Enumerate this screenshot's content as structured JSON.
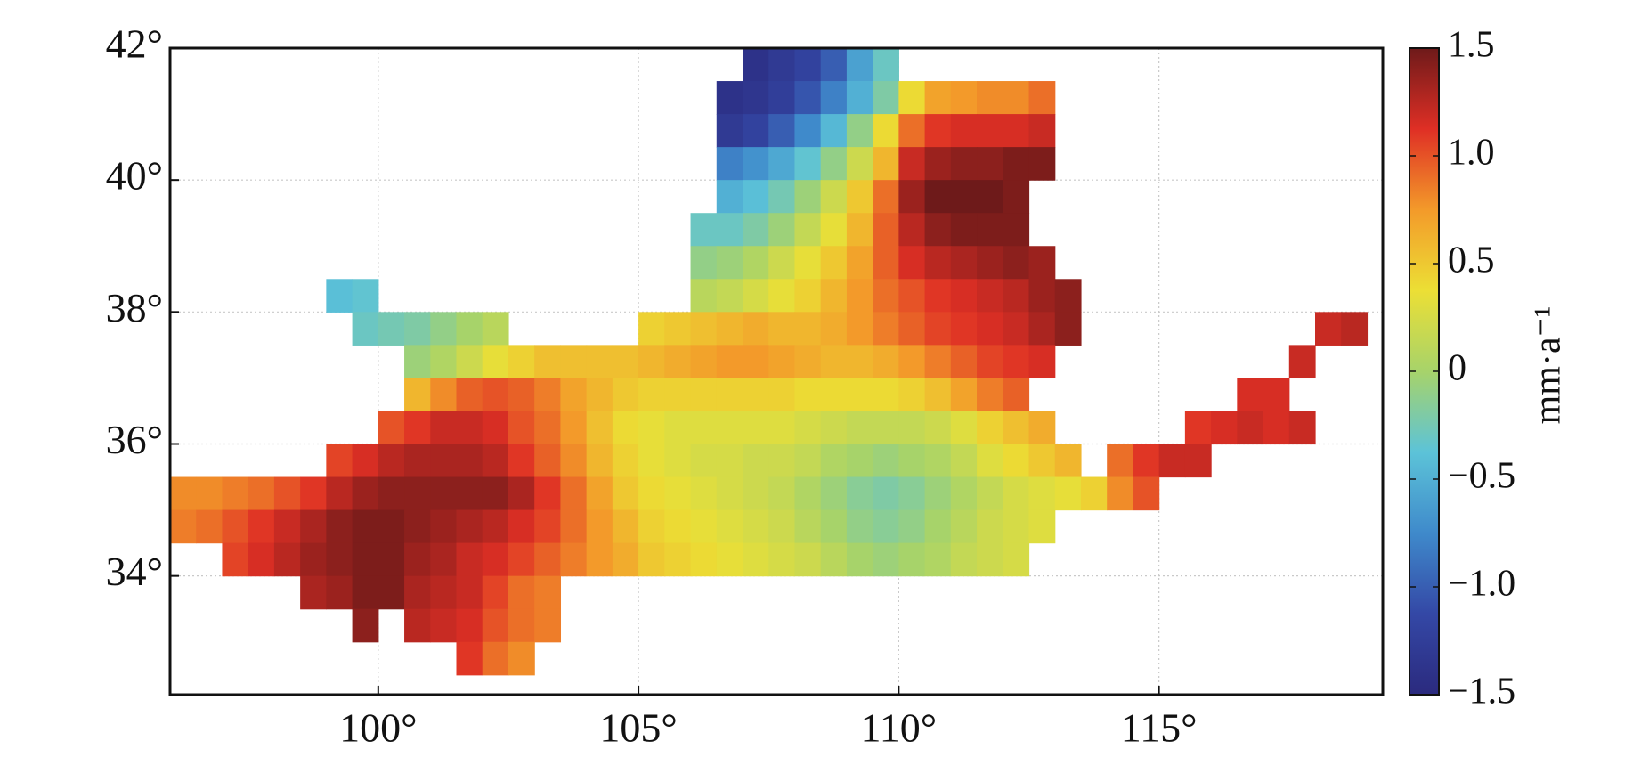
{
  "chart_data": {
    "type": "heatmap",
    "x": [
      96.25,
      96.75,
      97.25,
      97.75,
      98.25,
      98.75,
      99.25,
      99.75,
      100.25,
      100.75,
      101.25,
      101.75,
      102.25,
      102.75,
      103.25,
      103.75,
      104.25,
      104.75,
      105.25,
      105.75,
      106.25,
      106.75,
      107.25,
      107.75,
      108.25,
      108.75,
      109.25,
      109.75,
      110.25,
      110.75,
      111.25,
      111.75,
      112.25,
      112.75,
      113.25,
      113.75,
      114.25,
      114.75,
      115.25,
      115.75,
      116.25,
      116.75,
      117.25,
      117.75,
      118.25,
      118.75
    ],
    "y": [
      41.75,
      41.25,
      40.75,
      40.25,
      39.75,
      39.25,
      38.75,
      38.25,
      37.75,
      37.25,
      36.75,
      36.25,
      35.75,
      35.25,
      34.75,
      34.25,
      33.75,
      33.25,
      32.75
    ],
    "values": [
      [
        null,
        null,
        null,
        null,
        null,
        null,
        null,
        null,
        null,
        null,
        null,
        null,
        null,
        null,
        null,
        null,
        null,
        null,
        null,
        null,
        null,
        null,
        -1.4,
        -1.3,
        -1.2,
        -1.0,
        -0.6,
        -0.3,
        null,
        null,
        null,
        null,
        null,
        null,
        null,
        null,
        null,
        null,
        null,
        null,
        null,
        null,
        null,
        null,
        null,
        null
      ],
      [
        null,
        null,
        null,
        null,
        null,
        null,
        null,
        null,
        null,
        null,
        null,
        null,
        null,
        null,
        null,
        null,
        null,
        null,
        null,
        null,
        null,
        -1.4,
        -1.35,
        -1.25,
        -1.05,
        -0.8,
        -0.5,
        -0.2,
        0.4,
        0.7,
        0.75,
        0.8,
        0.8,
        0.9,
        null,
        null,
        null,
        null,
        null,
        null,
        null,
        null,
        null,
        null,
        null,
        null
      ],
      [
        null,
        null,
        null,
        null,
        null,
        null,
        null,
        null,
        null,
        null,
        null,
        null,
        null,
        null,
        null,
        null,
        null,
        null,
        null,
        null,
        null,
        -1.3,
        -1.2,
        -1.0,
        -0.75,
        -0.45,
        -0.1,
        0.4,
        0.9,
        1.1,
        1.15,
        1.15,
        1.15,
        1.2,
        null,
        null,
        null,
        null,
        null,
        null,
        null,
        null,
        null,
        null,
        null,
        null
      ],
      [
        null,
        null,
        null,
        null,
        null,
        null,
        null,
        null,
        null,
        null,
        null,
        null,
        null,
        null,
        null,
        null,
        null,
        null,
        null,
        null,
        null,
        -0.8,
        -0.7,
        -0.55,
        -0.35,
        -0.1,
        0.2,
        0.6,
        1.2,
        1.35,
        1.4,
        1.4,
        1.45,
        1.45,
        null,
        null,
        null,
        null,
        null,
        null,
        null,
        null,
        null,
        null,
        null,
        null
      ],
      [
        null,
        null,
        null,
        null,
        null,
        null,
        null,
        null,
        null,
        null,
        null,
        null,
        null,
        null,
        null,
        null,
        null,
        null,
        null,
        null,
        null,
        -0.5,
        -0.4,
        -0.25,
        -0.05,
        0.2,
        0.5,
        0.9,
        1.35,
        1.5,
        1.5,
        1.5,
        1.45,
        null,
        null,
        null,
        null,
        null,
        null,
        null,
        null,
        null,
        null,
        null,
        null,
        null
      ],
      [
        null,
        null,
        null,
        null,
        null,
        null,
        null,
        null,
        null,
        null,
        null,
        null,
        null,
        null,
        null,
        null,
        null,
        null,
        null,
        null,
        -0.3,
        -0.3,
        -0.2,
        -0.05,
        0.15,
        0.35,
        0.6,
        0.95,
        1.25,
        1.4,
        1.45,
        1.45,
        1.45,
        null,
        null,
        null,
        null,
        null,
        null,
        null,
        null,
        null,
        null,
        null,
        null,
        null
      ],
      [
        null,
        null,
        null,
        null,
        null,
        null,
        null,
        null,
        null,
        null,
        null,
        null,
        null,
        null,
        null,
        null,
        null,
        null,
        null,
        null,
        -0.1,
        -0.05,
        0.05,
        0.2,
        0.35,
        0.5,
        0.7,
        0.95,
        1.15,
        1.25,
        1.3,
        1.35,
        1.4,
        1.35,
        null,
        null,
        null,
        null,
        null,
        null,
        null,
        null,
        null,
        null,
        null,
        null
      ],
      [
        null,
        null,
        null,
        null,
        null,
        null,
        -0.4,
        -0.35,
        null,
        null,
        null,
        null,
        null,
        null,
        null,
        null,
        null,
        null,
        null,
        null,
        0.1,
        0.15,
        0.25,
        0.35,
        0.45,
        0.6,
        0.75,
        0.9,
        1.0,
        1.1,
        1.15,
        1.2,
        1.25,
        1.35,
        1.4,
        null,
        null,
        null,
        null,
        null,
        null,
        null,
        null,
        null,
        null,
        null
      ],
      [
        null,
        null,
        null,
        null,
        null,
        null,
        null,
        -0.3,
        -0.25,
        -0.2,
        -0.1,
        0.0,
        0.1,
        null,
        null,
        null,
        null,
        null,
        0.45,
        0.5,
        0.55,
        0.6,
        0.65,
        0.6,
        0.6,
        0.65,
        0.75,
        0.85,
        0.95,
        1.05,
        1.1,
        1.15,
        1.2,
        1.3,
        1.4,
        null,
        null,
        null,
        null,
        null,
        null,
        null,
        null,
        null,
        1.2,
        1.25
      ],
      [
        null,
        null,
        null,
        null,
        null,
        null,
        null,
        null,
        null,
        -0.05,
        0.05,
        0.2,
        0.35,
        0.45,
        0.55,
        0.55,
        0.55,
        0.55,
        0.6,
        0.65,
        0.7,
        0.75,
        0.75,
        0.7,
        0.65,
        0.6,
        0.6,
        0.65,
        0.75,
        0.85,
        0.95,
        1.05,
        1.1,
        1.15,
        null,
        null,
        null,
        null,
        null,
        null,
        null,
        null,
        null,
        1.2,
        null,
        null
      ],
      [
        null,
        null,
        null,
        null,
        null,
        null,
        null,
        null,
        null,
        0.6,
        0.8,
        0.95,
        1.0,
        0.95,
        0.85,
        0.7,
        0.6,
        0.5,
        0.45,
        0.45,
        0.45,
        0.45,
        0.45,
        0.45,
        0.4,
        0.4,
        0.4,
        0.4,
        0.45,
        0.55,
        0.7,
        0.85,
        0.95,
        null,
        null,
        null,
        null,
        null,
        null,
        null,
        null,
        1.15,
        1.15,
        null,
        null,
        null
      ],
      [
        null,
        null,
        null,
        null,
        null,
        null,
        null,
        null,
        1.0,
        1.1,
        1.2,
        1.2,
        1.15,
        1.0,
        0.9,
        0.75,
        0.55,
        0.4,
        0.35,
        0.3,
        0.3,
        0.3,
        0.3,
        0.3,
        0.25,
        0.2,
        0.15,
        0.15,
        0.15,
        0.2,
        0.3,
        0.45,
        0.55,
        0.65,
        null,
        null,
        null,
        null,
        null,
        1.1,
        1.15,
        1.2,
        1.15,
        1.2,
        null,
        null
      ],
      [
        null,
        null,
        null,
        null,
        null,
        null,
        1.05,
        1.15,
        1.25,
        1.3,
        1.3,
        1.3,
        1.25,
        1.1,
        0.95,
        0.8,
        0.6,
        0.45,
        0.35,
        0.3,
        0.25,
        0.25,
        0.2,
        0.2,
        0.15,
        0.05,
        0.0,
        -0.05,
        0.0,
        0.05,
        0.15,
        0.3,
        0.4,
        0.5,
        0.6,
        null,
        0.9,
        1.1,
        1.2,
        1.2,
        null,
        null,
        null,
        null,
        null,
        null
      ],
      [
        0.8,
        0.8,
        0.85,
        0.9,
        1.0,
        1.1,
        1.25,
        1.35,
        1.4,
        1.4,
        1.4,
        1.4,
        1.4,
        1.3,
        1.1,
        0.9,
        0.7,
        0.5,
        0.4,
        0.35,
        0.3,
        0.25,
        0.2,
        0.15,
        0.05,
        -0.05,
        -0.15,
        -0.2,
        -0.15,
        -0.05,
        0.05,
        0.15,
        0.25,
        0.3,
        0.35,
        0.45,
        0.8,
        1.0,
        null,
        null,
        null,
        null,
        null,
        null,
        null,
        null
      ],
      [
        0.85,
        0.9,
        1.0,
        1.1,
        1.2,
        1.3,
        1.4,
        1.45,
        1.45,
        1.4,
        1.35,
        1.3,
        1.25,
        1.15,
        1.05,
        0.9,
        0.75,
        0.6,
        0.45,
        0.4,
        0.35,
        0.3,
        0.25,
        0.2,
        0.1,
        0.0,
        -0.1,
        -0.15,
        -0.1,
        0.0,
        0.1,
        0.2,
        0.25,
        0.3,
        null,
        null,
        null,
        null,
        null,
        null,
        null,
        null,
        null,
        null,
        null,
        null
      ],
      [
        null,
        null,
        1.05,
        1.15,
        1.25,
        1.35,
        1.4,
        1.45,
        1.45,
        1.35,
        1.3,
        1.2,
        1.15,
        1.05,
        0.95,
        0.85,
        0.75,
        0.65,
        0.5,
        0.45,
        0.4,
        0.35,
        0.3,
        0.25,
        0.2,
        0.1,
        0.0,
        -0.05,
        0.0,
        0.05,
        0.15,
        0.2,
        0.25,
        null,
        null,
        null,
        null,
        null,
        null,
        null,
        null,
        null,
        null,
        null,
        null,
        null
      ],
      [
        null,
        null,
        null,
        null,
        null,
        1.3,
        1.35,
        1.45,
        1.45,
        1.3,
        1.25,
        1.2,
        1.05,
        0.9,
        0.85,
        null,
        null,
        null,
        null,
        null,
        null,
        null,
        null,
        null,
        null,
        null,
        null,
        null,
        null,
        null,
        null,
        null,
        null,
        null,
        null,
        null,
        null,
        null,
        null,
        null,
        null,
        null,
        null,
        null,
        null,
        null
      ],
      [
        null,
        null,
        null,
        null,
        null,
        null,
        null,
        1.4,
        null,
        1.25,
        1.2,
        1.15,
        1.0,
        0.9,
        0.85,
        null,
        null,
        null,
        null,
        null,
        null,
        null,
        null,
        null,
        null,
        null,
        null,
        null,
        null,
        null,
        null,
        null,
        null,
        null,
        null,
        null,
        null,
        null,
        null,
        null,
        null,
        null,
        null,
        null,
        null,
        null
      ],
      [
        null,
        null,
        null,
        null,
        null,
        null,
        null,
        null,
        null,
        null,
        null,
        1.1,
        0.9,
        0.8,
        null,
        null,
        null,
        null,
        null,
        null,
        null,
        null,
        null,
        null,
        null,
        null,
        null,
        null,
        null,
        null,
        null,
        null,
        null,
        null,
        null,
        null,
        null,
        null,
        null,
        null,
        null,
        null,
        null,
        null,
        null,
        null
      ]
    ],
    "xlim": [
      96,
      119.3
    ],
    "ylim": [
      32.2,
      42
    ],
    "xticks": [
      {
        "value": 100,
        "label": "100°"
      },
      {
        "value": 105,
        "label": "105°"
      },
      {
        "value": 110,
        "label": "110°"
      },
      {
        "value": 115,
        "label": "115°"
      }
    ],
    "yticks": [
      {
        "value": 34,
        "label": "34°"
      },
      {
        "value": 36,
        "label": "36°"
      },
      {
        "value": 38,
        "label": "38°"
      },
      {
        "value": 40,
        "label": "40°"
      },
      {
        "value": 42,
        "label": "42°"
      }
    ],
    "grid": true,
    "colormap": [
      "#2b2a7e",
      "#3448a6",
      "#3f8acb",
      "#5cc3d8",
      "#a7d36a",
      "#ecdf35",
      "#f39a2a",
      "#df2f25",
      "#6e1a1a"
    ],
    "colorbar": {
      "label": "mm·a⁻¹",
      "lim": [
        -1.5,
        1.5
      ],
      "ticks": [
        1.5,
        {
          "value": 1.0,
          "label": "1.0"
        },
        0.5,
        0,
        {
          "value": -0.5,
          "label": "−0.5"
        },
        {
          "value": -1.0,
          "label": "−1.0"
        },
        {
          "value": -1.5,
          "label": "−1.5"
        }
      ]
    }
  }
}
